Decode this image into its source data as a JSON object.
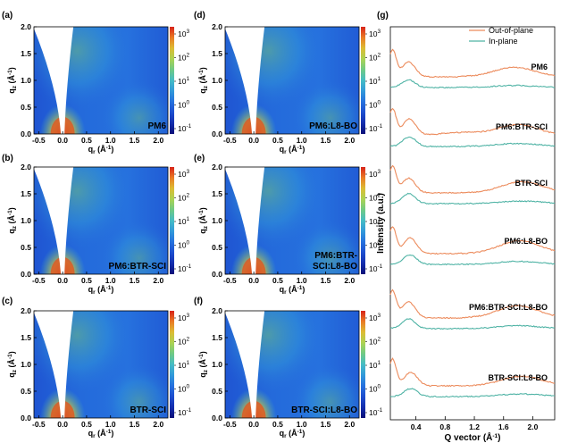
{
  "chart_data": [
    {
      "type": "heatmap",
      "panel": "(a)",
      "sample": "PM6",
      "xlabel": "q",
      "xlabel_sub": "r",
      "xlabel_unit": " (Å",
      "xlabel_sup": "-1",
      "xlabel_close": ")",
      "ylabel": "q",
      "ylabel_sub": "z",
      "ylabel_unit": " (Å",
      "ylabel_sup": "-1",
      "ylabel_close": ")",
      "xlim": [
        -0.6,
        2.2
      ],
      "ylim": [
        0,
        2.0
      ],
      "xticks": [
        "-0.5",
        "0.0",
        "0.5",
        "1.0",
        "1.5",
        "2.0"
      ],
      "yticks": [
        "0.0",
        "0.5",
        "1.0",
        "1.5",
        "2.0"
      ],
      "colorbar_ticks": [
        {
          "base": "10",
          "exp": "3"
        },
        {
          "base": "10",
          "exp": "2"
        },
        {
          "base": "10",
          "exp": "1"
        },
        {
          "base": "10",
          "exp": "0"
        },
        {
          "base": "10",
          "exp": "-1"
        }
      ]
    },
    {
      "type": "heatmap",
      "panel": "(b)",
      "sample": "PM6:BTR-SCI",
      "xlabel": "q",
      "xlabel_sub": "r",
      "xlabel_unit": " (Å",
      "xlabel_sup": "-1",
      "xlabel_close": ")",
      "ylabel": "q",
      "ylabel_sub": "z",
      "ylabel_unit": " (Å",
      "ylabel_sup": "-1",
      "ylabel_close": ")",
      "xlim": [
        -0.6,
        2.2
      ],
      "ylim": [
        0,
        2.0
      ],
      "xticks": [
        "-0.5",
        "0.0",
        "0.5",
        "1.0",
        "1.5",
        "2.0"
      ],
      "yticks": [
        "0.0",
        "0.5",
        "1.0",
        "1.5",
        "2.0"
      ],
      "colorbar_ticks": [
        {
          "base": "10",
          "exp": "3"
        },
        {
          "base": "10",
          "exp": "2"
        },
        {
          "base": "10",
          "exp": "1"
        },
        {
          "base": "10",
          "exp": "0"
        },
        {
          "base": "10",
          "exp": "-1"
        }
      ]
    },
    {
      "type": "heatmap",
      "panel": "(c)",
      "sample": "BTR-SCI",
      "xlabel": "q",
      "xlabel_sub": "r",
      "xlabel_unit": " (Å",
      "xlabel_sup": "-1",
      "xlabel_close": ")",
      "ylabel": "q",
      "ylabel_sub": "z",
      "ylabel_unit": " (Å",
      "ylabel_sup": "-1",
      "ylabel_close": ")",
      "xlim": [
        -0.6,
        2.2
      ],
      "ylim": [
        0,
        2.0
      ],
      "xticks": [
        "-0.5",
        "0.0",
        "0.5",
        "1.0",
        "1.5",
        "2.0"
      ],
      "yticks": [
        "0.0",
        "0.5",
        "1.0",
        "1.5",
        "2.0"
      ],
      "colorbar_ticks": [
        {
          "base": "10",
          "exp": "3"
        },
        {
          "base": "10",
          "exp": "2"
        },
        {
          "base": "10",
          "exp": "1"
        },
        {
          "base": "10",
          "exp": "0"
        },
        {
          "base": "10",
          "exp": "-1"
        }
      ]
    },
    {
      "type": "heatmap",
      "panel": "(d)",
      "sample": "PM6:L8-BO",
      "xlabel": "q",
      "xlabel_sub": "r",
      "xlabel_unit": " (Å",
      "xlabel_sup": "-1",
      "xlabel_close": ")",
      "ylabel": "q",
      "ylabel_sub": "z",
      "ylabel_unit": " (Å",
      "ylabel_sup": "-1",
      "ylabel_close": ")",
      "xlim": [
        -0.6,
        2.2
      ],
      "ylim": [
        0,
        2.0
      ],
      "xticks": [
        "-0.5",
        "0.0",
        "0.5",
        "1.0",
        "1.5",
        "2.0"
      ],
      "yticks": [
        "0.0",
        "0.5",
        "1.0",
        "1.5",
        "2.0"
      ],
      "colorbar_ticks": [
        {
          "base": "10",
          "exp": "3"
        },
        {
          "base": "10",
          "exp": "2"
        },
        {
          "base": "10",
          "exp": "1"
        },
        {
          "base": "10",
          "exp": "0"
        },
        {
          "base": "10",
          "exp": "-1"
        }
      ]
    },
    {
      "type": "heatmap",
      "panel": "(e)",
      "sample": "PM6:BTR-\nSCI:L8-BO",
      "xlabel": "q",
      "xlabel_sub": "r",
      "xlabel_unit": " (Å",
      "xlabel_sup": "-1",
      "xlabel_close": ")",
      "ylabel": "q",
      "ylabel_sub": "z",
      "ylabel_unit": " (Å",
      "ylabel_sup": "-1",
      "ylabel_close": ")",
      "xlim": [
        -0.6,
        2.2
      ],
      "ylim": [
        0,
        2.0
      ],
      "xticks": [
        "-0.5",
        "0.0",
        "0.5",
        "1.0",
        "1.5",
        "2.0"
      ],
      "yticks": [
        "0.0",
        "0.5",
        "1.0",
        "1.5",
        "2.0"
      ],
      "colorbar_ticks": [
        {
          "base": "10",
          "exp": "3"
        },
        {
          "base": "10",
          "exp": "2"
        },
        {
          "base": "10",
          "exp": "1"
        },
        {
          "base": "10",
          "exp": "0"
        },
        {
          "base": "10",
          "exp": "-1"
        }
      ]
    },
    {
      "type": "heatmap",
      "panel": "(f)",
      "sample": "BTR-SCI:L8-BO",
      "xlabel": "q",
      "xlabel_sub": "r",
      "xlabel_unit": " (Å",
      "xlabel_sup": "-1",
      "xlabel_close": ")",
      "ylabel": "q",
      "ylabel_sub": "z",
      "ylabel_unit": " (Å",
      "ylabel_sup": "-1",
      "ylabel_close": ")",
      "xlim": [
        -0.6,
        2.2
      ],
      "ylim": [
        0,
        2.0
      ],
      "xticks": [
        "-0.5",
        "0.0",
        "0.5",
        "1.0",
        "1.5",
        "2.0"
      ],
      "yticks": [
        "0.0",
        "0.5",
        "1.0",
        "1.5",
        "2.0"
      ],
      "colorbar_ticks": [
        {
          "base": "10",
          "exp": "3"
        },
        {
          "base": "10",
          "exp": "2"
        },
        {
          "base": "10",
          "exp": "1"
        },
        {
          "base": "10",
          "exp": "0"
        },
        {
          "base": "10",
          "exp": "-1"
        }
      ]
    },
    {
      "type": "line",
      "panel": "(g)",
      "xlabel": "Q vector (Å",
      "xlabel_sup": "-1",
      "xlabel_close": ")",
      "ylabel": "Intensity (a.u.)",
      "xlim": [
        0.05,
        2.3
      ],
      "xticks": [
        0.4,
        0.8,
        1.2,
        1.6,
        2.0
      ],
      "xtick_labels": [
        "0.4",
        "0.8",
        "1.2",
        "1.6",
        "2.0"
      ],
      "legend": [
        {
          "name": "Out-of-plane",
          "color": "#ec8b5c"
        },
        {
          "name": "In-plane",
          "color": "#4fb3a5"
        }
      ],
      "legend_position": "top-right",
      "samples": [
        "PM6",
        "PM6:BTR-SCI",
        "BTR-SCI",
        "PM6:L8-BO",
        "PM6:BTR-SCI:L8-BO",
        "BTR-SCI:L8-BO"
      ],
      "peaks": {
        "PM6": {
          "oop": [
            [
              0.08,
              1.0
            ],
            [
              0.3,
              0.55
            ],
            [
              1.75,
              0.35
            ]
          ],
          "ip": [
            [
              0.3,
              0.3
            ],
            [
              1.75,
              0.08
            ]
          ]
        },
        "PM6:BTR-SCI": {
          "oop": [
            [
              0.08,
              1.0
            ],
            [
              0.31,
              0.62
            ],
            [
              1.0,
              0.12
            ],
            [
              1.8,
              0.42
            ]
          ],
          "ip": [
            [
              0.31,
              0.38
            ],
            [
              1.8,
              0.12
            ]
          ]
        },
        "BTR-SCI": {
          "oop": [
            [
              0.08,
              1.0
            ],
            [
              0.3,
              0.55
            ],
            [
              1.85,
              0.42
            ]
          ],
          "ip": [
            [
              0.3,
              0.4
            ],
            [
              1.85,
              0.1
            ]
          ]
        },
        "PM6:L8-BO": {
          "oop": [
            [
              0.08,
              1.0
            ],
            [
              0.32,
              0.58
            ],
            [
              1.82,
              0.48
            ]
          ],
          "ip": [
            [
              0.32,
              0.38
            ],
            [
              1.8,
              0.12
            ]
          ]
        },
        "PM6:BTR-SCI:L8-BO": {
          "oop": [
            [
              0.08,
              1.0
            ],
            [
              0.3,
              0.6
            ],
            [
              1.8,
              0.45
            ]
          ],
          "ip": [
            [
              0.3,
              0.4
            ],
            [
              1.8,
              0.12
            ]
          ]
        },
        "BTR-SCI:L8-BO": {
          "oop": [
            [
              0.08,
              1.0
            ],
            [
              0.33,
              0.5
            ],
            [
              1.85,
              0.35
            ]
          ],
          "ip": [
            [
              0.33,
              0.32
            ],
            [
              1.85,
              0.1
            ]
          ]
        }
      }
    }
  ],
  "colors": {
    "out_of_plane": "#ec8b5c",
    "in_plane": "#4fb3a5"
  }
}
